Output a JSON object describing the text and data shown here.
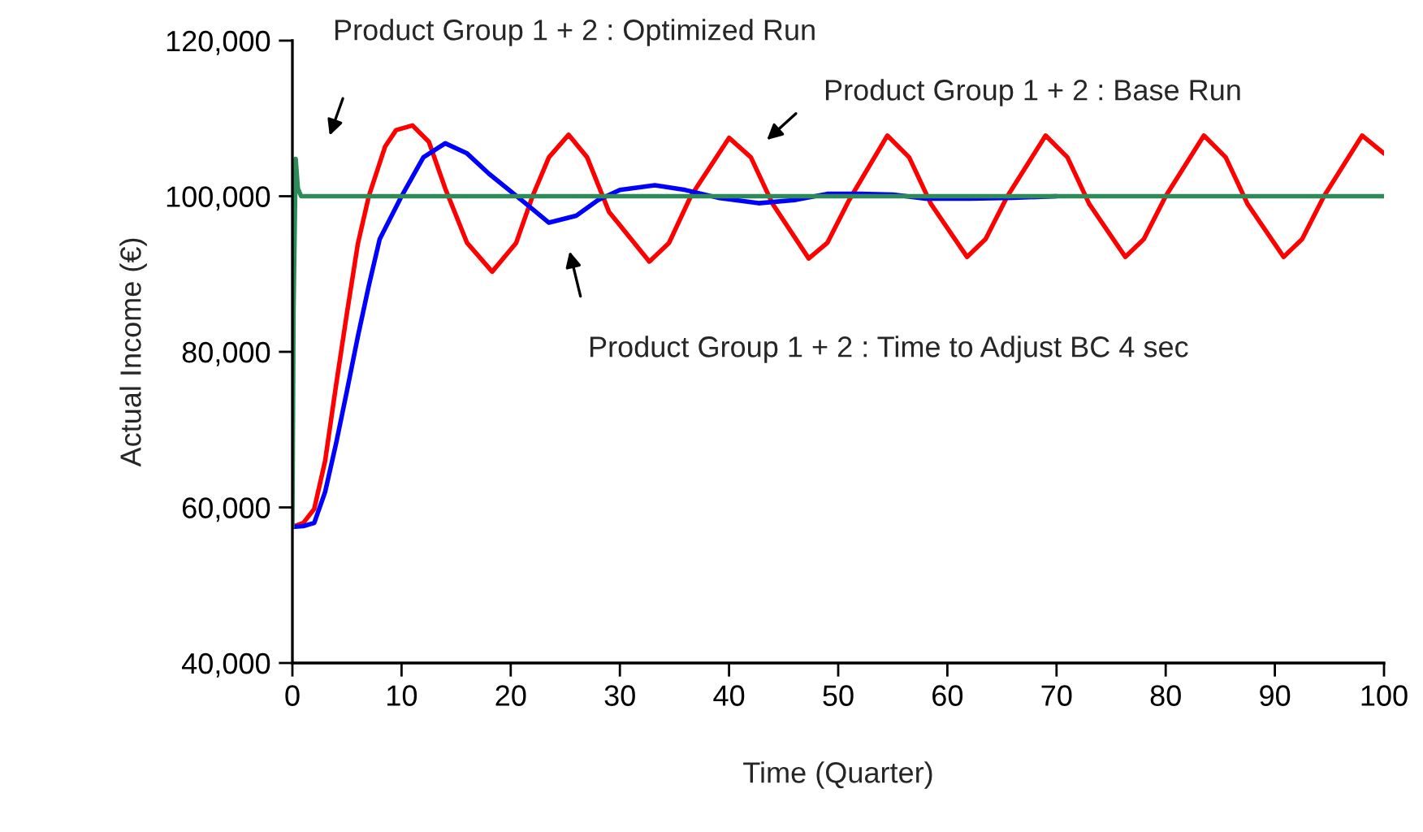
{
  "chart_data": {
    "type": "line",
    "xlabel": "Time (Quarter)",
    "ylabel": "Actual Income (€)",
    "xlim": [
      0,
      100
    ],
    "xticks": [
      0,
      10,
      20,
      30,
      40,
      50,
      60,
      70,
      80,
      90,
      100
    ],
    "ylim": [
      40000,
      120000
    ],
    "yticks": [
      {
        "value": 40000,
        "label": "40,000"
      },
      {
        "value": 60000,
        "label": "60,000"
      },
      {
        "value": 80000,
        "label": "80,000"
      },
      {
        "value": 100000,
        "label": "100,000"
      },
      {
        "value": 120000,
        "label": "120,000"
      }
    ],
    "grid": false,
    "marker": "none",
    "line_style": "solid",
    "series": [
      {
        "color": "#ff0000",
        "x": [
          0,
          1,
          2,
          3,
          4,
          5,
          6,
          7,
          8.5,
          9.5,
          11,
          12.5,
          14,
          16,
          18.3,
          20.5,
          22,
          23.5,
          25.3,
          27,
          29,
          32.7,
          34.5,
          36.5,
          40,
          42,
          44,
          47.3,
          49,
          51,
          54.5,
          56.5,
          58.5,
          61.8,
          63.5,
          65.5,
          69,
          71,
          73,
          76.3,
          78,
          80,
          83.5,
          85.5,
          87.5,
          90.8,
          92.5,
          94.5,
          98,
          100
        ],
        "values": [
          57500,
          58000,
          59800,
          66000,
          75700,
          85000,
          93900,
          100000,
          106400,
          108500,
          109100,
          107000,
          101000,
          94000,
          90300,
          94000,
          100000,
          105000,
          107900,
          105000,
          98000,
          91600,
          94000,
          100000,
          107500,
          105000,
          99000,
          92000,
          94000,
          99500,
          107800,
          105000,
          99000,
          92200,
          94500,
          100000,
          107800,
          105000,
          99000,
          92200,
          94500,
          100000,
          107800,
          105000,
          99000,
          92200,
          94500,
          100000,
          107800,
          105500
        ]
      },
      {
        "color": "#0000ff",
        "x": [
          0,
          1,
          2,
          3,
          4,
          5,
          6,
          7,
          8,
          10,
          12,
          14,
          16,
          18,
          21,
          23.5,
          26,
          28,
          30,
          33.2,
          36,
          39,
          42.7,
          46,
          49,
          52,
          55,
          58,
          62,
          66,
          70
        ],
        "values": [
          57500,
          57600,
          58000,
          62000,
          68200,
          75000,
          82000,
          88500,
          94500,
          100000,
          105000,
          106800,
          105500,
          102900,
          99500,
          96600,
          97500,
          99500,
          100800,
          101400,
          100800,
          99800,
          99100,
          99500,
          100300,
          100300,
          100200,
          99700,
          99700,
          99800,
          100000
        ]
      },
      {
        "color": "#2e8b57",
        "x": [
          0,
          0.1,
          0.3,
          0.5,
          0.8,
          1.2,
          100
        ],
        "values": [
          57500,
          85000,
          104800,
          101000,
          100000,
          100000,
          100000
        ]
      }
    ],
    "annotations": [
      "Product Group 1 + 2 : Optimized Run",
      "Product Group 1 + 2 : Base Run",
      "Product Group 1 + 2 : Time to Adjust BC 4 sec"
    ]
  }
}
